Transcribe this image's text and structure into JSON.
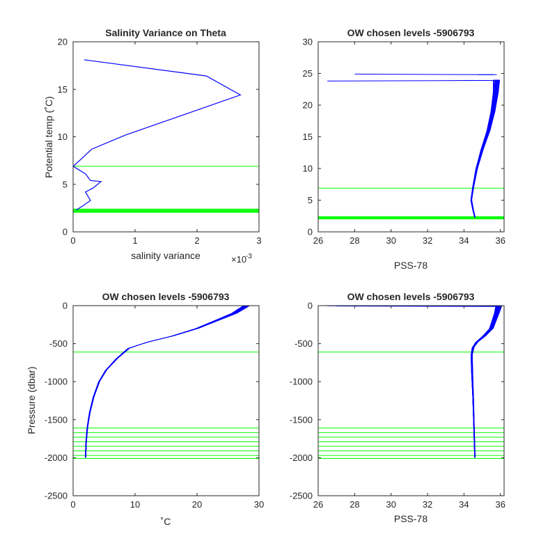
{
  "colors": {
    "data_line": "#0000ff",
    "level_line": "#00ff00",
    "axes": "#262626"
  },
  "panels": {
    "p1": {
      "title": "Salinity Variance on Theta",
      "xlabel": "salinity variance",
      "ylabel": "Potential temp (˚C)",
      "exponent_base": "×10",
      "exponent_power": "-3",
      "xticks": [
        "0",
        "1",
        "2",
        "3"
      ],
      "yticks": [
        "0",
        "5",
        "10",
        "15",
        "20"
      ]
    },
    "p2": {
      "title": "OW chosen levels -5906793",
      "xlabel": "PSS-78",
      "xticks": [
        "26",
        "28",
        "30",
        "32",
        "34",
        "36"
      ],
      "yticks": [
        "0",
        "5",
        "10",
        "15",
        "20",
        "25",
        "30"
      ]
    },
    "p3": {
      "title": "OW chosen levels -5906793",
      "xlabel": "˚C",
      "ylabel": "Pressure (dbar)",
      "xticks": [
        "0",
        "10",
        "20",
        "30"
      ],
      "yticks": [
        "0",
        "-500",
        "-1000",
        "-1500",
        "-2000",
        "-2500"
      ]
    },
    "p4": {
      "title": "OW chosen levels -5906793",
      "xlabel": "PSS-78",
      "xticks": [
        "26",
        "28",
        "30",
        "32",
        "34",
        "36"
      ],
      "yticks": [
        "0",
        "-500",
        "-1000",
        "-1500",
        "-2000",
        "-2500"
      ]
    }
  },
  "chart_data": [
    {
      "type": "line",
      "title": "Salinity Variance on Theta",
      "xlabel": "salinity variance",
      "ylabel": "Potential temp (˚C)",
      "x_multiplier": "1e-3",
      "xlim": [
        0,
        3
      ],
      "ylim": [
        0,
        20
      ],
      "series": [
        {
          "x": [
            0.18,
            2.15,
            2.7,
            0.85,
            0.3,
            0.12,
            0.0,
            0.2,
            0.28,
            0.45,
            0.32,
            0.2,
            0.28,
            0.15,
            0.05
          ],
          "y": [
            18.1,
            16.4,
            14.4,
            10.2,
            8.7,
            7.6,
            6.9,
            6.1,
            5.4,
            5.3,
            4.6,
            4.2,
            3.3,
            2.7,
            2.3
          ]
        }
      ],
      "chosen_levels": [
        6.9,
        2.05,
        2.12,
        2.19,
        2.26,
        2.33,
        2.4
      ]
    },
    {
      "type": "line",
      "title": "OW chosen levels -5906793",
      "xlabel": "PSS-78",
      "ylabel": "",
      "xlim": [
        26,
        36.2
      ],
      "ylim": [
        0,
        30
      ],
      "profile_template": {
        "x": [
          34.6,
          34.5,
          34.4,
          34.5,
          34.7,
          35.0,
          35.35,
          35.6,
          35.75,
          35.8
        ],
        "y": [
          2.3,
          3.5,
          5.0,
          7.0,
          10.0,
          13.0,
          16.0,
          19.0,
          22.0,
          24.0
        ]
      },
      "profile_count": 40,
      "spikes": [
        {
          "x": [
            35.7,
            26.5,
            35.9
          ],
          "y": [
            23.9,
            23.8,
            23.9
          ]
        },
        {
          "x": [
            35.6,
            28.0,
            35.8
          ],
          "y": [
            24.8,
            24.9,
            24.8
          ]
        },
        {
          "x": [
            35.4,
            34.8,
            35.6
          ],
          "y": [
            24.8,
            24.8,
            24.8
          ]
        }
      ],
      "chosen_levels": [
        6.9,
        2.05,
        2.12,
        2.19,
        2.26,
        2.33,
        2.4
      ]
    },
    {
      "type": "line",
      "title": "OW chosen levels -5906793",
      "xlabel": "˚C",
      "ylabel": "Pressure (dbar)",
      "xlim": [
        0,
        30
      ],
      "ylim": [
        -2500,
        0
      ],
      "profile_template": {
        "x": [
          2.0,
          2.1,
          2.3,
          2.7,
          3.3,
          4.2,
          5.3,
          7.0,
          9.0,
          12.0,
          16.0,
          20.0,
          23.0,
          26.0,
          28.0
        ],
        "y": [
          -2000,
          -1800,
          -1600,
          -1400,
          -1200,
          -1000,
          -850,
          -700,
          -560,
          -480,
          -400,
          -300,
          -200,
          -100,
          0
        ]
      },
      "profile_count": 40,
      "chosen_levels": [
        -610,
        -1610,
        -1670,
        -1730,
        -1790,
        -1850,
        -1910,
        -1970,
        -2010
      ]
    },
    {
      "type": "line",
      "title": "OW chosen levels -5906793",
      "xlabel": "PSS-78",
      "ylabel": "",
      "xlim": [
        26,
        36.2
      ],
      "ylim": [
        -2500,
        0
      ],
      "profile_template": {
        "x": [
          34.6,
          34.55,
          34.5,
          34.45,
          34.42,
          34.5,
          34.7,
          35.1,
          35.5,
          35.8,
          35.9
        ],
        "y": [
          -2000,
          -1600,
          -1200,
          -900,
          -650,
          -550,
          -480,
          -400,
          -300,
          -100,
          0
        ]
      },
      "profile_count": 40,
      "surface_lines": [
        {
          "x": [
            26.5,
            35.9
          ],
          "y": [
            -2,
            -8
          ]
        },
        {
          "x": [
            27.0,
            35.9
          ],
          "y": [
            -5,
            -12
          ]
        }
      ],
      "chosen_levels": [
        -610,
        -1610,
        -1670,
        -1730,
        -1790,
        -1850,
        -1910,
        -1970,
        -2010
      ]
    }
  ]
}
